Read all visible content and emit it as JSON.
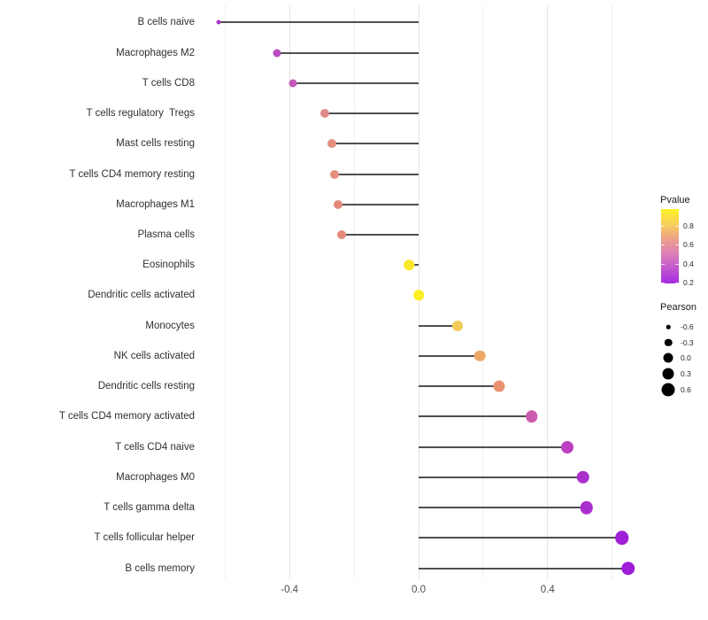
{
  "chart_data": {
    "type": "lollipop",
    "description": "Horizontal lollipop chart of Pearson correlation per immune cell type, dot color mapped to Pvalue (yellow high, purple low), dot size mapped to Pearson value",
    "xlabel": "",
    "ylabel": "",
    "x_axis": {
      "tick_labels": [
        "-0.4",
        "0.0",
        "0.4"
      ],
      "tick_values": [
        -0.4,
        0.0,
        0.4
      ],
      "minor_grid_values": [
        -0.6,
        -0.2,
        0.2,
        0.6
      ],
      "range": [
        -0.68,
        0.7
      ],
      "baseline_value": 0.0
    },
    "points": [
      {
        "label": "B cells naive",
        "pearson": -0.62,
        "pvalue": 0.25,
        "color": "#ad36c9",
        "size": 5
      },
      {
        "label": "Macrophages M2",
        "pearson": -0.44,
        "pvalue": 0.32,
        "color": "#b94dc1",
        "size": 9
      },
      {
        "label": "T cells CD8",
        "pearson": -0.39,
        "pvalue": 0.38,
        "color": "#c158b9",
        "size": 9
      },
      {
        "label": "T cells regulatory  Tregs",
        "pearson": -0.29,
        "pvalue": 0.55,
        "color": "#e18a8a",
        "size": 10
      },
      {
        "label": "Mast cells resting",
        "pearson": -0.27,
        "pvalue": 0.57,
        "color": "#e48f7d",
        "size": 10
      },
      {
        "label": "T cells CD4 memory resting",
        "pearson": -0.26,
        "pvalue": 0.57,
        "color": "#e48f7d",
        "size": 10
      },
      {
        "label": "Macrophages M1",
        "pearson": -0.25,
        "pvalue": 0.58,
        "color": "#e2897b",
        "size": 10
      },
      {
        "label": "Plasma cells",
        "pearson": -0.24,
        "pvalue": 0.58,
        "color": "#e2897b",
        "size": 10
      },
      {
        "label": "Eosinophils",
        "pearson": -0.03,
        "pvalue": 0.93,
        "color": "#f9e92a",
        "size": 11.5
      },
      {
        "label": "Dendritic cells activated",
        "pearson": 0.0,
        "pvalue": 0.97,
        "color": "#fbee22",
        "size": 11.5
      },
      {
        "label": "Monocytes",
        "pearson": 0.12,
        "pvalue": 0.82,
        "color": "#f2cb59",
        "size": 12
      },
      {
        "label": "NK cells activated",
        "pearson": 0.19,
        "pvalue": 0.72,
        "color": "#eda867",
        "size": 12.5
      },
      {
        "label": "Dendritic cells resting",
        "pearson": 0.25,
        "pvalue": 0.62,
        "color": "#e89272",
        "size": 13
      },
      {
        "label": "T cells CD4 memory activated",
        "pearson": 0.35,
        "pvalue": 0.45,
        "color": "#cd5bae",
        "size": 13.5
      },
      {
        "label": "T cells CD4 naive",
        "pearson": 0.46,
        "pvalue": 0.34,
        "color": "#bb41c1",
        "size": 14
      },
      {
        "label": "Macrophages M0",
        "pearson": 0.51,
        "pvalue": 0.27,
        "color": "#aa30cd",
        "size": 14.5
      },
      {
        "label": "T cells gamma delta",
        "pearson": 0.52,
        "pvalue": 0.27,
        "color": "#aa30cd",
        "size": 14.5
      },
      {
        "label": "T cells follicular helper",
        "pearson": 0.63,
        "pvalue": 0.21,
        "color": "#9e1fd6",
        "size": 15.5
      },
      {
        "label": "B cells memory",
        "pearson": 0.65,
        "pvalue": 0.2,
        "color": "#9d1ed8",
        "size": 15.5
      }
    ],
    "legend_pvalue": {
      "title": "Pvalue",
      "tick_labels": [
        "0.8",
        "0.6",
        "0.4",
        "0.2"
      ],
      "tick_values": [
        0.8,
        0.6,
        0.4,
        0.2
      ],
      "domain_top_to_bottom": [
        0.98,
        0.19
      ],
      "gradient_top_to_bottom": [
        "#fdf226",
        "#f8cf5a",
        "#eca188",
        "#dd7fb8",
        "#c156cf",
        "#a42ae0"
      ]
    },
    "legend_pearson": {
      "title": "Pearson",
      "dot_color": "#000000",
      "items": [
        {
          "label": "-0.6",
          "size": 4.5
        },
        {
          "label": "-0.3",
          "size": 8.5
        },
        {
          "label": "0.0",
          "size": 11
        },
        {
          "label": "0.3",
          "size": 13
        },
        {
          "label": "0.6",
          "size": 15
        }
      ]
    },
    "style": {
      "stem_color": "#4f4f4f",
      "grid_major_color": "#e4e4e4",
      "grid_minor_color": "#f0f0f0",
      "axis_text_color": "#4d4d4d",
      "label_text_color": "#303030",
      "background": "#ffffff"
    }
  }
}
